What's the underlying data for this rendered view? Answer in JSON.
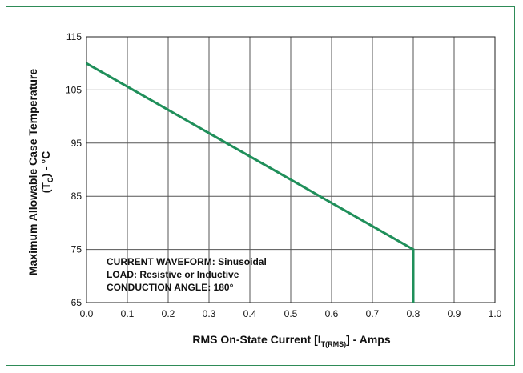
{
  "chart_data": {
    "type": "line",
    "xlabel": {
      "pre": "RMS On-State Current [I",
      "sub": "T(RMS)",
      "post": "] - Amps"
    },
    "ylabel": {
      "line1": "Maximum Allowable Case Temperature",
      "line2_pre": "(T",
      "line2_sub": "C",
      "line2_post": ") - °C"
    },
    "xlim": [
      0.0,
      1.0
    ],
    "ylim": [
      65,
      115
    ],
    "xticks": [
      "0.0",
      "0.1",
      "0.2",
      "0.3",
      "0.4",
      "0.5",
      "0.6",
      "0.7",
      "0.8",
      "0.9",
      "1.0"
    ],
    "yticks": [
      "65",
      "75",
      "85",
      "95",
      "105",
      "115"
    ],
    "grid": true,
    "series": [
      {
        "x": [
          0.0,
          0.8,
          0.8
        ],
        "y": [
          110,
          75,
          65
        ],
        "color": "#1f8f5a"
      }
    ],
    "annotations": [
      "CURRENT WAVEFORM: Sinusoidal",
      "LOAD: Resistive or Inductive",
      "CONDUCTION ANGLE: 180°"
    ]
  },
  "colors": {
    "frame": "#2e8b57",
    "grid": "#555555",
    "line": "#1f8f5a"
  }
}
